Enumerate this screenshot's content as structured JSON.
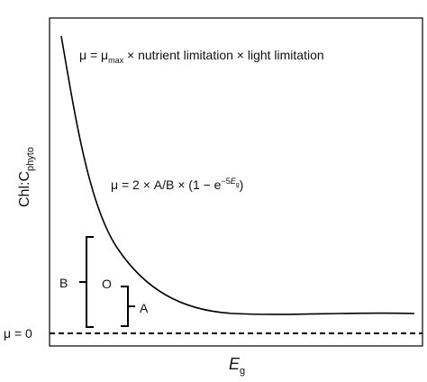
{
  "growth_equation": {
    "lhs": "μ = μ",
    "sub": "max",
    "rhs": " × nutrient limitation × light limitation"
  },
  "chl_equation": {
    "lhs": "μ = 2 × A/B × (1 − e",
    "sup_prefix": "−5",
    "sup_var": "E",
    "sup_sub": "g",
    "close": ")"
  },
  "axes": {
    "y_label": {
      "text": "Chl:C",
      "sub": "phyto"
    },
    "x_label": {
      "text": "E",
      "sub": "g"
    }
  },
  "labels": {
    "B": "B",
    "O": "O",
    "A": "A",
    "mu_zero": "μ = 0"
  }
}
